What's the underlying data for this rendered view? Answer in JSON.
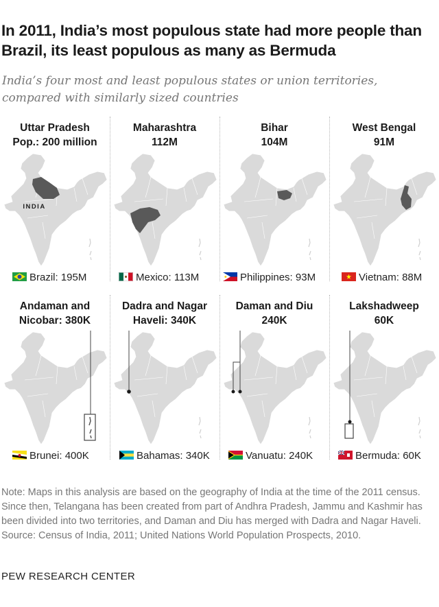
{
  "title": "In 2011, India’s most populous state had more people than Brazil, its least populous as many as Bermuda",
  "subtitle": "India’s four most and least populous states or union territories, compared with similarly sized countries",
  "chart_data": {
    "type": "small-multiple maps",
    "map_label": "INDIA",
    "most_populous": [
      {
        "line1": "Uttar Pradesh",
        "line2": "Pop.: 200 million",
        "state": "Uttar Pradesh",
        "population": 200000000,
        "country_label": "Brazil: 195M",
        "country": "Brazil",
        "country_population": 195000000,
        "flag": "brazil-flag"
      },
      {
        "line1": "Maharashtra",
        "line2": "112M",
        "state": "Maharashtra",
        "population": 112000000,
        "country_label": "Mexico: 113M",
        "country": "Mexico",
        "country_population": 113000000,
        "flag": "mexico-flag"
      },
      {
        "line1": "Bihar",
        "line2": "104M",
        "state": "Bihar",
        "population": 104000000,
        "country_label": "Philippines: 93M",
        "country": "Philippines",
        "country_population": 93000000,
        "flag": "philippines-flag"
      },
      {
        "line1": "West Bengal",
        "line2": "91M",
        "state": "West Bengal",
        "population": 91000000,
        "country_label": "Vietnam: 88M",
        "country": "Vietnam",
        "country_population": 88000000,
        "flag": "vietnam-flag"
      }
    ],
    "least_populous": [
      {
        "line1": "Andaman and",
        "line2": "Nicobar: 380K",
        "state": "Andaman and Nicobar",
        "population": 380000,
        "country_label": "Brunei: 400K",
        "country": "Brunei",
        "country_population": 400000,
        "flag": "brunei-flag"
      },
      {
        "line1": "Dadra and Nagar",
        "line2": "Haveli: 340K",
        "state": "Dadra and Nagar Haveli",
        "population": 340000,
        "country_label": "Bahamas: 340K",
        "country": "Bahamas",
        "country_population": 340000,
        "flag": "bahamas-flag"
      },
      {
        "line1": "Daman and Diu",
        "line2": "240K",
        "state": "Daman and Diu",
        "population": 240000,
        "country_label": "Vanuatu: 240K",
        "country": "Vanuatu",
        "country_population": 240000,
        "flag": "vanuatu-flag"
      },
      {
        "line1": "Lakshadweep",
        "line2": "60K",
        "state": "Lakshadweep",
        "population": 60000,
        "country_label": "Bermuda: 60K",
        "country": "Bermuda",
        "country_population": 60000,
        "flag": "bermuda-flag"
      }
    ]
  },
  "colors": {
    "map_fill": "#dadada",
    "map_stroke": "#ffffff",
    "highlight": "#595959",
    "leader": "#444444",
    "note": "#767676"
  },
  "note": "Note: Maps in this analysis are based on the geography of India at the time of the 2011 census. Since then, Telangana has been created from part of Andhra Pradesh, Jammu and Kashmir has been divided into two territories, and Daman and Diu has merged with Dadra and Nagar Haveli.",
  "source": "Source: Census of India, 2011; United Nations World Population Prospects, 2010.",
  "brand": "PEW RESEARCH CENTER"
}
